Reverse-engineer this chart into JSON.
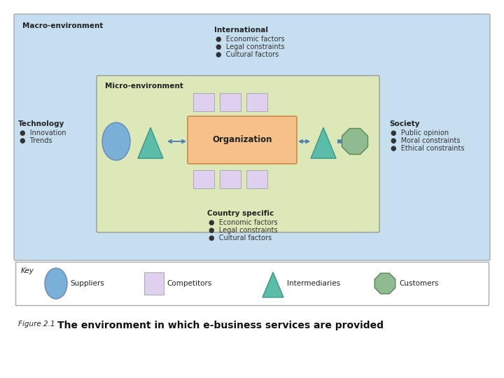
{
  "bg_color": "#ffffff",
  "outer_box_color": "#c5dff0",
  "inner_box_color": "#dde8b8",
  "org_box_color": "#f5c08a",
  "competitor_rect_color": "#e0d0f0",
  "supplier_color": "#7ab0d8",
  "intermediary_color": "#5bbcaa",
  "customer_color": "#90bb90",
  "arrow_color": "#4a7ab8",
  "outer_edge_color": "#aaaaaa",
  "inner_edge_color": "#999999",
  "org_edge_color": "#cc8844",
  "macro_label": "Macro-environment",
  "micro_label": "Micro-environment",
  "org_label": "Organization",
  "intl_title": "International",
  "intl_bullets": [
    "Economic factors",
    "Legal constraints",
    "Cultural factors"
  ],
  "country_title": "Country specific",
  "country_bullets": [
    "Economic factors",
    "Legal constraints",
    "Cultural factors"
  ],
  "tech_title": "Technology",
  "tech_bullets": [
    "Innovation",
    "Trends"
  ],
  "society_title": "Society",
  "society_bullets": [
    "Public opinion",
    "Moral constraints",
    "Ethical constraints"
  ],
  "key_label": "Key",
  "key_suppliers": "Suppliers",
  "key_competitors": "Competitors",
  "key_intermediaries": "Intermediaries",
  "key_customers": "Customers",
  "figure_label": "Figure 2.1",
  "main_title": "The environment in which e-business services are provided",
  "bullet_dot": "●"
}
